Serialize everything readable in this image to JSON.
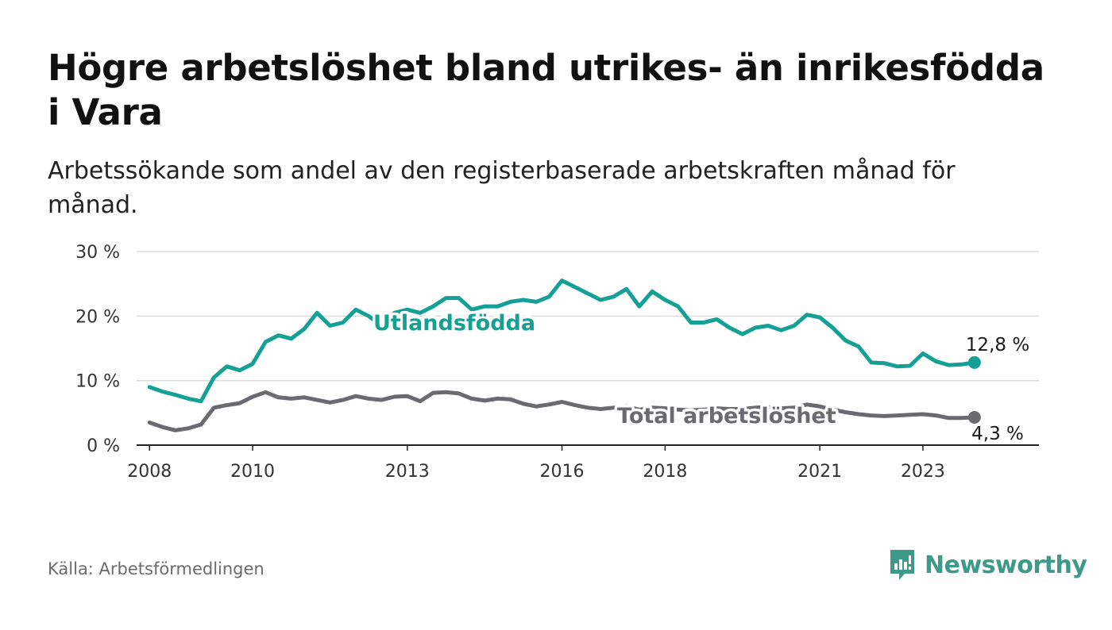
{
  "title": "Högre arbetslöshet bland utrikes- än inrikesfödda i Vara",
  "subtitle": "Arbetssökande som andel av den registerbaserade arbetskraften månad för månad.",
  "source": "Källa: Arbetsförmedlingen",
  "brand": {
    "name": "Newsworthy",
    "icon": "newsworthy-logo-icon",
    "color": "#3d9a8b"
  },
  "colors": {
    "foreign": "#14a095",
    "total": "#6b6a70",
    "grid": "#dcdcdc",
    "axis": "#222222"
  },
  "chart_data": {
    "type": "line",
    "title": "Högre arbetslöshet bland utrikes- än inrikesfödda i Vara",
    "xlabel": "",
    "ylabel": "",
    "xlim": [
      2007.75,
      2025.25
    ],
    "ylim": [
      0,
      30
    ],
    "x_ticks": [
      2008,
      2010,
      2013,
      2016,
      2018,
      2021,
      2023
    ],
    "x_tick_labels": [
      "2008",
      "2010",
      "2013",
      "2016",
      "2018",
      "2021",
      "2023"
    ],
    "y_ticks": [
      0,
      10,
      20,
      30
    ],
    "y_tick_labels": [
      "0 %",
      "10 %",
      "20 %",
      "30 %"
    ],
    "grid": true,
    "series": [
      {
        "name": "Utlandsfödda",
        "color": "#14a095",
        "end_label": "12,8 %",
        "x": [
          2008,
          2008.25,
          2008.5,
          2008.75,
          2009,
          2009.25,
          2009.5,
          2009.75,
          2010,
          2010.25,
          2010.5,
          2010.75,
          2011,
          2011.25,
          2011.5,
          2011.75,
          2012,
          2012.25,
          2012.5,
          2012.75,
          2013,
          2013.25,
          2013.5,
          2013.75,
          2014,
          2014.25,
          2014.5,
          2014.75,
          2015,
          2015.25,
          2015.5,
          2015.75,
          2016,
          2016.25,
          2016.5,
          2016.75,
          2017,
          2017.25,
          2017.5,
          2017.75,
          2018,
          2018.25,
          2018.5,
          2018.75,
          2019,
          2019.25,
          2019.5,
          2019.75,
          2020,
          2020.25,
          2020.5,
          2020.75,
          2021,
          2021.25,
          2021.5,
          2021.75,
          2022,
          2022.25,
          2022.5,
          2022.75,
          2023,
          2023.25,
          2023.5,
          2023.75,
          2024
        ],
        "values": [
          9,
          8.3,
          7.8,
          7.2,
          6.8,
          10.5,
          12.2,
          11.6,
          12.6,
          16,
          17,
          16.5,
          18,
          20.5,
          18.5,
          19,
          21,
          20,
          18.5,
          20.5,
          21,
          20.5,
          21.5,
          22.8,
          22.8,
          21,
          21.5,
          21.5,
          22.2,
          22.5,
          22.2,
          23,
          25.5,
          24.5,
          23.5,
          22.5,
          23,
          24.2,
          21.5,
          23.8,
          22.5,
          21.5,
          19,
          19,
          19.5,
          18.2,
          17.2,
          18.2,
          18.5,
          17.8,
          18.5,
          20.2,
          19.8,
          18.2,
          16.2,
          15.3,
          12.8,
          12.7,
          12.2,
          12.3,
          14.2,
          13,
          12.4,
          12.5,
          12.8
        ]
      },
      {
        "name": "Total arbetslöshet",
        "color": "#6b6a70",
        "end_label": "4,3 %",
        "x": [
          2008,
          2008.25,
          2008.5,
          2008.75,
          2009,
          2009.25,
          2009.5,
          2009.75,
          2010,
          2010.25,
          2010.5,
          2010.75,
          2011,
          2011.25,
          2011.5,
          2011.75,
          2012,
          2012.25,
          2012.5,
          2012.75,
          2013,
          2013.25,
          2013.5,
          2013.75,
          2014,
          2014.25,
          2014.5,
          2014.75,
          2015,
          2015.25,
          2015.5,
          2015.75,
          2016,
          2016.25,
          2016.5,
          2016.75,
          2017,
          2017.25,
          2017.5,
          2017.75,
          2018,
          2018.25,
          2018.5,
          2018.75,
          2019,
          2019.25,
          2019.5,
          2019.75,
          2020,
          2020.25,
          2020.5,
          2020.75,
          2021,
          2021.25,
          2021.5,
          2021.75,
          2022,
          2022.25,
          2022.5,
          2022.75,
          2023,
          2023.25,
          2023.5,
          2023.75,
          2024
        ],
        "values": [
          3.5,
          2.8,
          2.3,
          2.6,
          3.2,
          5.8,
          6.2,
          6.5,
          7.5,
          8.2,
          7.4,
          7.2,
          7.4,
          7,
          6.6,
          7,
          7.6,
          7.2,
          7,
          7.5,
          7.6,
          6.8,
          8.1,
          8.2,
          8,
          7.2,
          6.9,
          7.2,
          7.1,
          6.4,
          6,
          6.3,
          6.7,
          6.2,
          5.8,
          5.6,
          5.8,
          6,
          5.5,
          5.8,
          5.7,
          5.5,
          5.4,
          5.5,
          5.7,
          5.6,
          5.6,
          5.8,
          5.9,
          5.7,
          5.8,
          6.3,
          6,
          5.5,
          5.1,
          4.8,
          4.6,
          4.5,
          4.6,
          4.7,
          4.8,
          4.6,
          4.2,
          4.2,
          4.3
        ]
      }
    ]
  }
}
